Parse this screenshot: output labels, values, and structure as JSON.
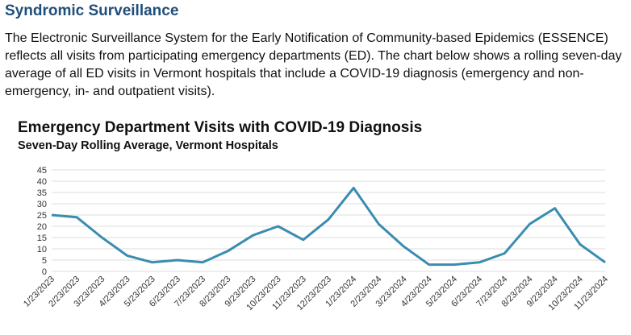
{
  "header": {
    "title": "Syndromic Surveillance"
  },
  "intro": {
    "text": "The Electronic Surveillance System for the Early Notification of Community-based Epidemics (ESSENCE) reflects all visits from participating emergency departments (ED). The chart below shows a rolling seven-day average of all ED visits in Vermont hospitals that include a COVID-19 diagnosis (emergency and non-emergency, in- and outpatient visits)."
  },
  "chart_data": {
    "type": "line",
    "title": "Emergency Department Visits with COVID-19 Diagnosis",
    "subtitle": "Seven-Day Rolling Average, Vermont Hospitals",
    "categories": [
      "1/23/2023",
      "2/23/2023",
      "3/23/2023",
      "4/23/2023",
      "5/23/2023",
      "6/23/2023",
      "7/23/2023",
      "8/23/2023",
      "9/23/2023",
      "10/23/2023",
      "11/23/2023",
      "12/23/2023",
      "1/23/2024",
      "2/23/2024",
      "3/23/2024",
      "4/23/2024",
      "5/23/2024",
      "6/23/2024",
      "7/23/2024",
      "8/23/2024",
      "9/23/2024",
      "10/23/2024",
      "11/23/2024"
    ],
    "values": [
      25,
      24,
      15,
      7,
      4,
      5,
      4,
      9,
      16,
      20,
      14,
      23,
      37,
      21,
      11,
      3,
      3,
      4,
      8,
      21,
      28,
      12,
      4
    ],
    "color": "#3a8db0",
    "ylim": [
      0,
      45
    ],
    "yticks": [
      0,
      5,
      10,
      15,
      20,
      25,
      30,
      35,
      40,
      45
    ],
    "grid": true
  }
}
